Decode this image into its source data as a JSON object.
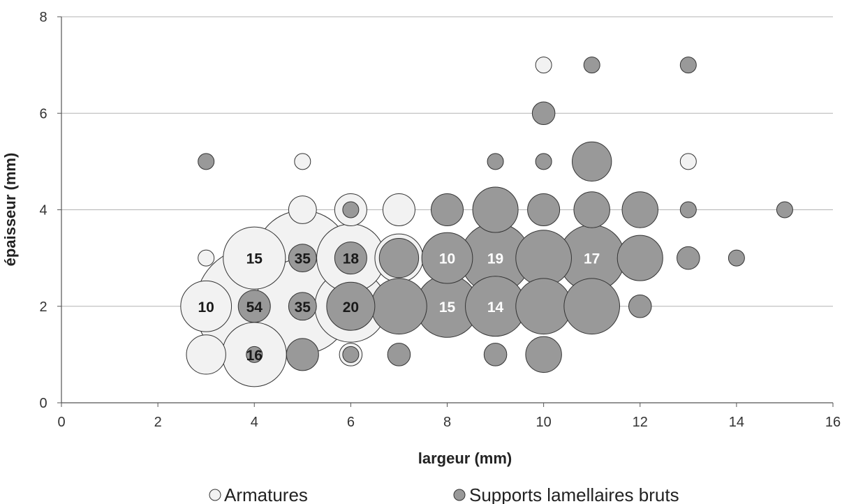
{
  "chart_data": {
    "type": "scatter",
    "variant": "bubble",
    "title": "",
    "xlabel": "largeur (mm)",
    "ylabel": "épaisseur (mm)",
    "xlim": [
      0,
      16
    ],
    "ylim": [
      0,
      8
    ],
    "x_ticks": [
      0,
      2,
      4,
      6,
      8,
      10,
      12,
      14,
      16
    ],
    "y_ticks": [
      0,
      2,
      4,
      6,
      8
    ],
    "grid": "horizontal",
    "legend_position": "bottom",
    "legend": [
      "Armatures",
      "Supports lamellaires bruts"
    ],
    "series": [
      {
        "name": "Armatures",
        "color": "#f2f2f2",
        "points": [
          {
            "x": 3,
            "y": 3,
            "count": 1
          },
          {
            "x": 3,
            "y": 2,
            "count": 10,
            "label": "10"
          },
          {
            "x": 3,
            "y": 1,
            "count": 6
          },
          {
            "x": 4,
            "y": 3,
            "count": 15,
            "label": "15"
          },
          {
            "x": 4,
            "y": 2,
            "count": 54,
            "label": ""
          },
          {
            "x": 4,
            "y": 1,
            "count": 16,
            "label": "16"
          },
          {
            "x": 5,
            "y": 5,
            "count": 1
          },
          {
            "x": 5,
            "y": 4,
            "count": 3
          },
          {
            "x": 5,
            "y": 3,
            "count": 35,
            "label": ""
          },
          {
            "x": 5,
            "y": 2,
            "count": 35,
            "label": ""
          },
          {
            "x": 5,
            "y": 1,
            "count": 3
          },
          {
            "x": 6,
            "y": 4,
            "count": 4
          },
          {
            "x": 6,
            "y": 3,
            "count": 18,
            "label": ""
          },
          {
            "x": 6,
            "y": 2,
            "count": 20,
            "label": ""
          },
          {
            "x": 6,
            "y": 1,
            "count": 2
          },
          {
            "x": 7,
            "y": 4,
            "count": 4
          },
          {
            "x": 7,
            "y": 3,
            "count": 9
          },
          {
            "x": 7,
            "y": 2,
            "count": 9
          },
          {
            "x": 10,
            "y": 7,
            "count": 1
          },
          {
            "x": 13,
            "y": 5,
            "count": 1
          }
        ]
      },
      {
        "name": "Supports lamellaires bruts",
        "color": "#999999",
        "points": [
          {
            "x": 3,
            "y": 5,
            "count": 1
          },
          {
            "x": 4,
            "y": 2,
            "count": 4,
            "label": "54"
          },
          {
            "x": 4,
            "y": 1,
            "count": 1
          },
          {
            "x": 5,
            "y": 3,
            "count": 3,
            "label": "35"
          },
          {
            "x": 5,
            "y": 2,
            "count": 3,
            "label": "35"
          },
          {
            "x": 5,
            "y": 1,
            "count": 4
          },
          {
            "x": 6,
            "y": 4,
            "count": 1
          },
          {
            "x": 6,
            "y": 3,
            "count": 4,
            "label": "18"
          },
          {
            "x": 6,
            "y": 2,
            "count": 9,
            "label": "20"
          },
          {
            "x": 6,
            "y": 1,
            "count": 1
          },
          {
            "x": 7,
            "y": 3,
            "count": 6
          },
          {
            "x": 7,
            "y": 2,
            "count": 12
          },
          {
            "x": 7,
            "y": 1,
            "count": 2
          },
          {
            "x": 8,
            "y": 4,
            "count": 4
          },
          {
            "x": 8,
            "y": 3,
            "count": 10,
            "label": "10"
          },
          {
            "x": 8,
            "y": 2,
            "count": 15,
            "label": "15"
          },
          {
            "x": 9,
            "y": 5,
            "count": 1
          },
          {
            "x": 9,
            "y": 4,
            "count": 8
          },
          {
            "x": 9,
            "y": 3,
            "count": 19,
            "label": "19"
          },
          {
            "x": 9,
            "y": 2,
            "count": 14,
            "label": "14"
          },
          {
            "x": 9,
            "y": 1,
            "count": 2
          },
          {
            "x": 10,
            "y": 6,
            "count": 2
          },
          {
            "x": 10,
            "y": 5,
            "count": 1
          },
          {
            "x": 10,
            "y": 4,
            "count": 4
          },
          {
            "x": 10,
            "y": 3,
            "count": 12
          },
          {
            "x": 10,
            "y": 2,
            "count": 12
          },
          {
            "x": 10,
            "y": 1,
            "count": 5
          },
          {
            "x": 11,
            "y": 7,
            "count": 1
          },
          {
            "x": 11,
            "y": 5,
            "count": 6
          },
          {
            "x": 11,
            "y": 4,
            "count": 5
          },
          {
            "x": 11,
            "y": 3,
            "count": 17,
            "label": "17"
          },
          {
            "x": 11,
            "y": 2,
            "count": 12
          },
          {
            "x": 12,
            "y": 4,
            "count": 5
          },
          {
            "x": 12,
            "y": 3,
            "count": 8
          },
          {
            "x": 12,
            "y": 2,
            "count": 2
          },
          {
            "x": 13,
            "y": 7,
            "count": 1
          },
          {
            "x": 13,
            "y": 4,
            "count": 1
          },
          {
            "x": 13,
            "y": 3,
            "count": 2
          },
          {
            "x": 14,
            "y": 3,
            "count": 1
          },
          {
            "x": 15,
            "y": 4,
            "count": 1
          }
        ]
      }
    ]
  }
}
